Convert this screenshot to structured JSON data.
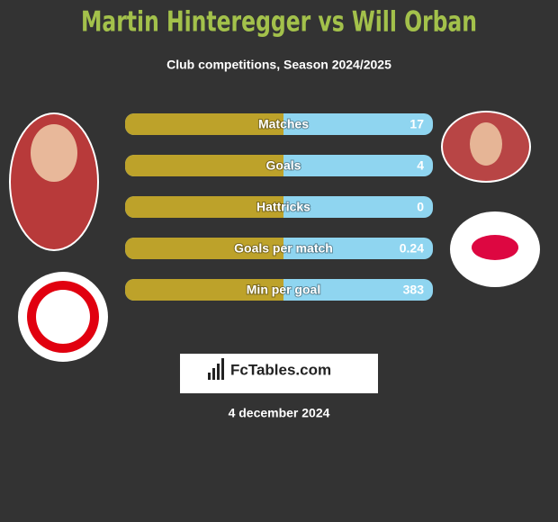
{
  "header": {
    "title": "Martin Hinteregger vs Will Orban",
    "subtitle": "Club competitions, Season 2024/2025"
  },
  "stats": [
    {
      "label": "Matches",
      "value": 17
    },
    {
      "label": "Goals",
      "value": 4
    },
    {
      "label": "Hattricks",
      "value": 0
    },
    {
      "label": "Goals per match",
      "value": 0.24
    },
    {
      "label": "Min per goal",
      "value": 383
    }
  ],
  "footer": {
    "brand": "FcTables.com",
    "date": "4 december 2024"
  }
}
